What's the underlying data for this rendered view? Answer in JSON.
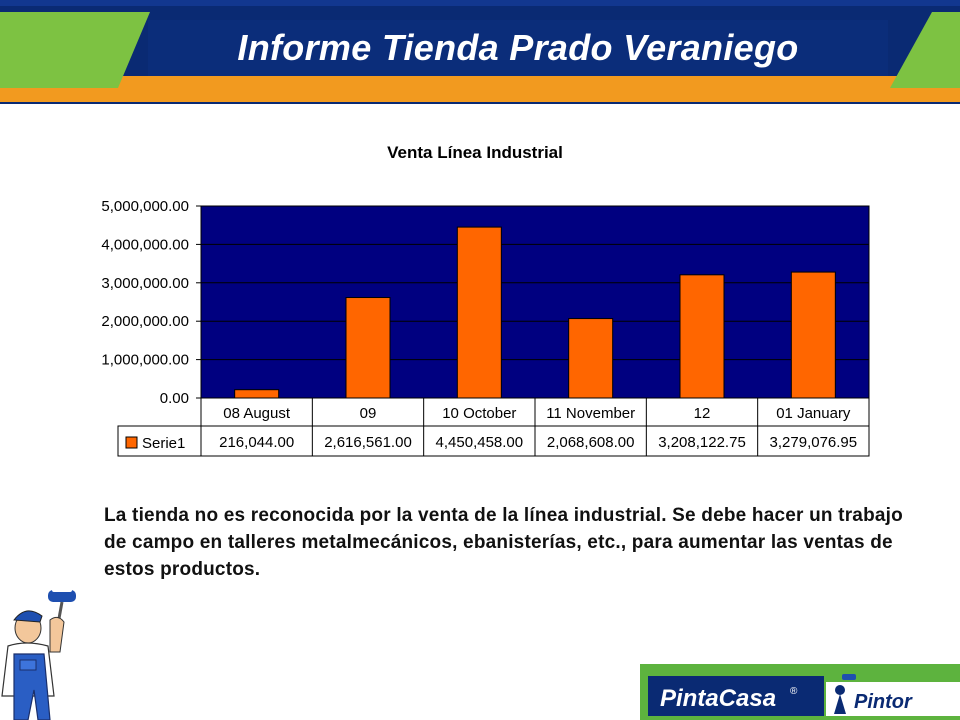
{
  "slide": {
    "title": "Informe Tienda Prado Veraniego",
    "note": "La tienda no es reconocida por la venta de la línea industrial. Se debe hacer un trabajo de campo en talleres metalmecánicos, ebanisterías, etc., para aumentar las ventas de estos productos."
  },
  "brand": {
    "name_left": "PintaCasa",
    "registered": "®",
    "name_right": "Pintor"
  },
  "colors": {
    "header_navy": "#0a2a73",
    "header_green": "#7dc242",
    "header_orange": "#f29a1f",
    "plot_background": "#000080",
    "bar_color": "#ff6600",
    "brand_green": "#5db33e",
    "brand_navy": "#0a2a73"
  },
  "icons": [
    "painter-illustration-icon",
    "pintor-logo-icon"
  ],
  "chart_data": {
    "type": "bar",
    "title": "Venta Línea Industrial",
    "xlabel": "",
    "ylabel": "",
    "ylim": [
      0,
      5000000
    ],
    "yticks": [
      "5,000,000.00",
      "4,000,000.00",
      "3,000,000.00",
      "2,000,000.00",
      "1,000,000.00",
      "0.00"
    ],
    "categories": [
      "08 August",
      "09",
      "10 October",
      "11 November",
      "12",
      "01 January"
    ],
    "series": [
      {
        "name": "Serie1",
        "values": [
          216044.0,
          2616561.0,
          4450458.0,
          2068608.0,
          3208122.75,
          3279076.95
        ],
        "labels": [
          "216,044.00",
          "2,616,561.00",
          "4,450,458.00",
          "2,068,608.00",
          "3,208,122.75",
          "3,279,076.95"
        ]
      }
    ],
    "grid": true,
    "legend": "data-table"
  }
}
